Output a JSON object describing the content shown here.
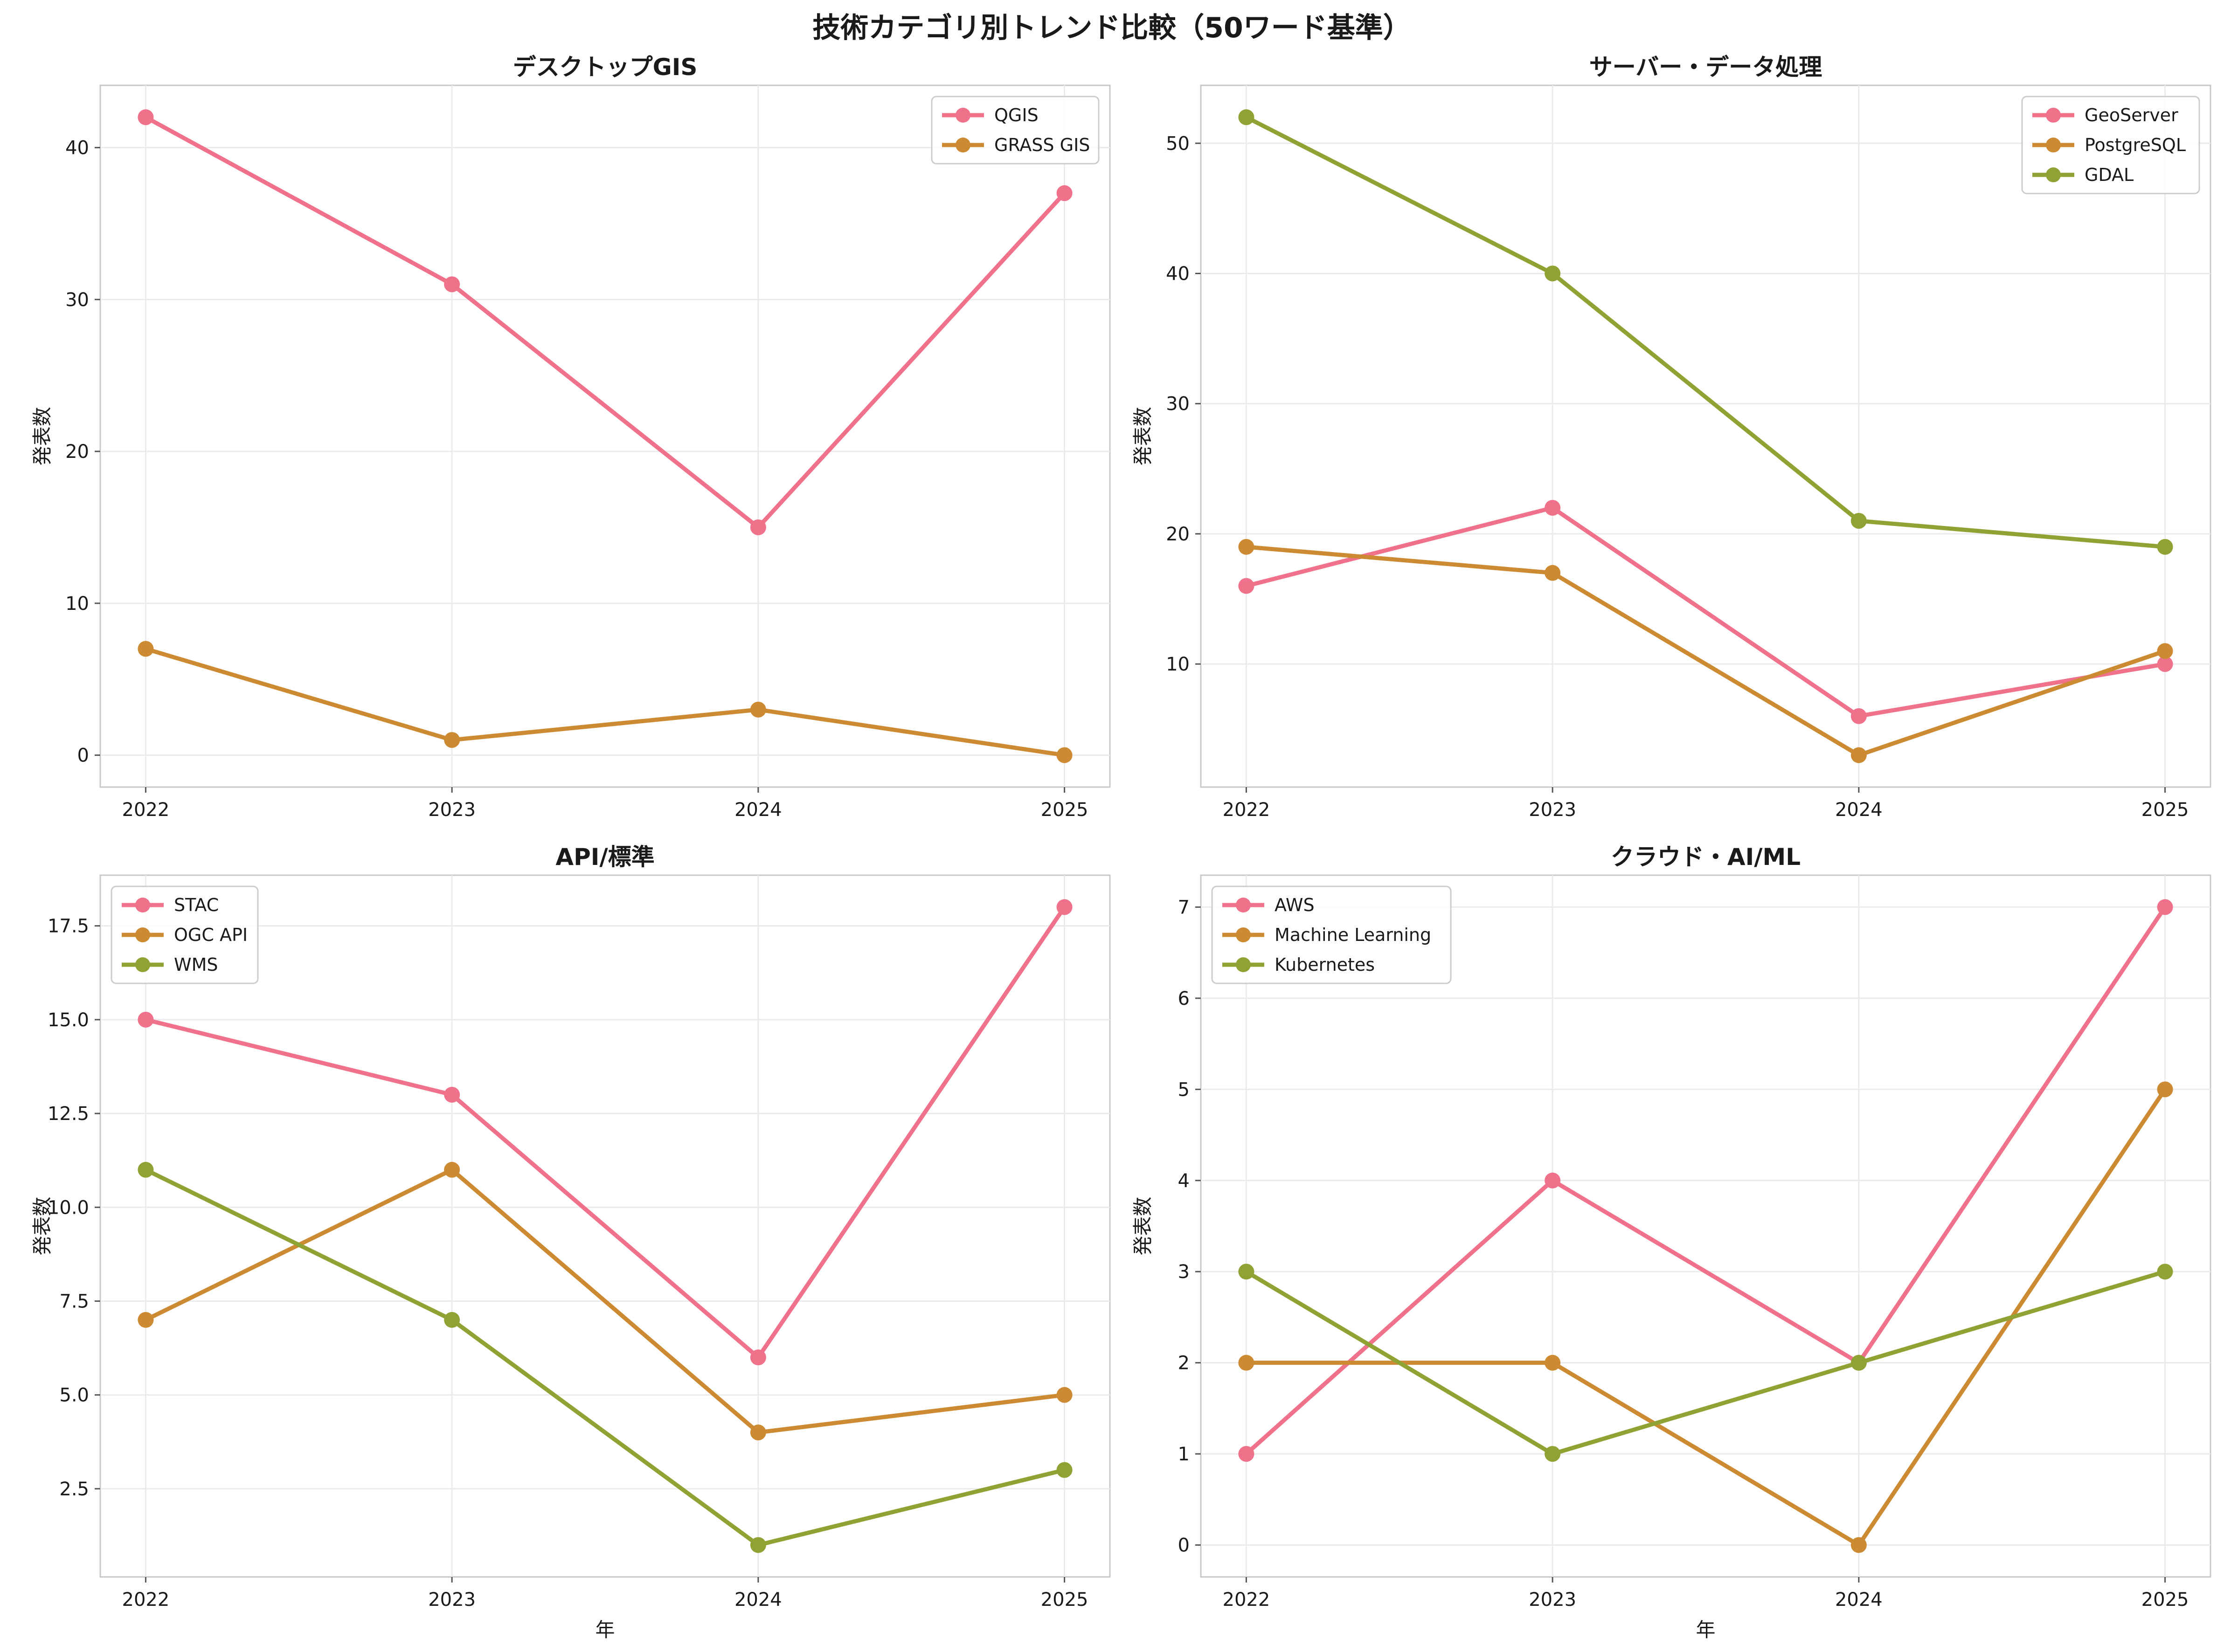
{
  "figure": {
    "suptitle": "技術カテゴリ別トレンド比較（50ワード基準）"
  },
  "colors": {
    "series1": "#f0718a",
    "series2": "#cc8a33",
    "series3": "#8fa335"
  },
  "chart_data": [
    {
      "type": "line",
      "title": "デスクトップGIS",
      "xlabel": "",
      "ylabel": "発表数",
      "x": [
        2022,
        2023,
        2024,
        2025
      ],
      "xticks": [
        "2022",
        "2023",
        "2024",
        "2025"
      ],
      "ylim": [
        -2.1,
        44.1
      ],
      "yticks": [
        0,
        10,
        20,
        30,
        40
      ],
      "ytick_labels": [
        "0",
        "10",
        "20",
        "30",
        "40"
      ],
      "legend_position": "top-right",
      "grid": true,
      "series": [
        {
          "name": "QGIS",
          "values": [
            42,
            31,
            15,
            37
          ]
        },
        {
          "name": "GRASS GIS",
          "values": [
            7,
            1,
            3,
            0
          ]
        }
      ]
    },
    {
      "type": "line",
      "title": "サーバー・データ処理",
      "xlabel": "",
      "ylabel": "発表数",
      "x": [
        2022,
        2023,
        2024,
        2025
      ],
      "xticks": [
        "2022",
        "2023",
        "2024",
        "2025"
      ],
      "ylim": [
        0.55,
        54.45
      ],
      "yticks": [
        10,
        20,
        30,
        40,
        50
      ],
      "ytick_labels": [
        "10",
        "20",
        "30",
        "40",
        "50"
      ],
      "legend_position": "top-right",
      "grid": true,
      "series": [
        {
          "name": "GeoServer",
          "values": [
            16,
            22,
            6,
            10
          ]
        },
        {
          "name": "PostgreSQL",
          "values": [
            19,
            17,
            3,
            11
          ]
        },
        {
          "name": "GDAL",
          "values": [
            52,
            40,
            21,
            19
          ]
        }
      ]
    },
    {
      "type": "line",
      "title": "API/標準",
      "xlabel": "年",
      "ylabel": "発表数",
      "x": [
        2022,
        2023,
        2024,
        2025
      ],
      "xticks": [
        "2022",
        "2023",
        "2024",
        "2025"
      ],
      "ylim": [
        0.15,
        18.85
      ],
      "yticks": [
        2.5,
        5,
        7.5,
        10,
        12.5,
        15,
        17.5
      ],
      "ytick_labels": [
        "2.5",
        "5.0",
        "7.5",
        "10.0",
        "12.5",
        "15.0",
        "17.5"
      ],
      "legend_position": "top-left",
      "grid": true,
      "series": [
        {
          "name": "STAC",
          "values": [
            15,
            13,
            6,
            18
          ]
        },
        {
          "name": "OGC API",
          "values": [
            7,
            11,
            4,
            5
          ]
        },
        {
          "name": "WMS",
          "values": [
            11,
            7,
            1,
            3
          ]
        }
      ]
    },
    {
      "type": "line",
      "title": "クラウド・AI/ML",
      "xlabel": "年",
      "ylabel": "発表数",
      "x": [
        2022,
        2023,
        2024,
        2025
      ],
      "xticks": [
        "2022",
        "2023",
        "2024",
        "2025"
      ],
      "ylim": [
        -0.35,
        7.35
      ],
      "yticks": [
        0,
        1,
        2,
        3,
        4,
        5,
        6,
        7
      ],
      "ytick_labels": [
        "0",
        "1",
        "2",
        "3",
        "4",
        "5",
        "6",
        "7"
      ],
      "legend_position": "top-left",
      "grid": true,
      "series": [
        {
          "name": "AWS",
          "values": [
            1,
            4,
            2,
            7
          ]
        },
        {
          "name": "Machine Learning",
          "values": [
            2,
            2,
            0,
            5
          ]
        },
        {
          "name": "Kubernetes",
          "values": [
            3,
            1,
            2,
            3
          ]
        }
      ]
    }
  ]
}
